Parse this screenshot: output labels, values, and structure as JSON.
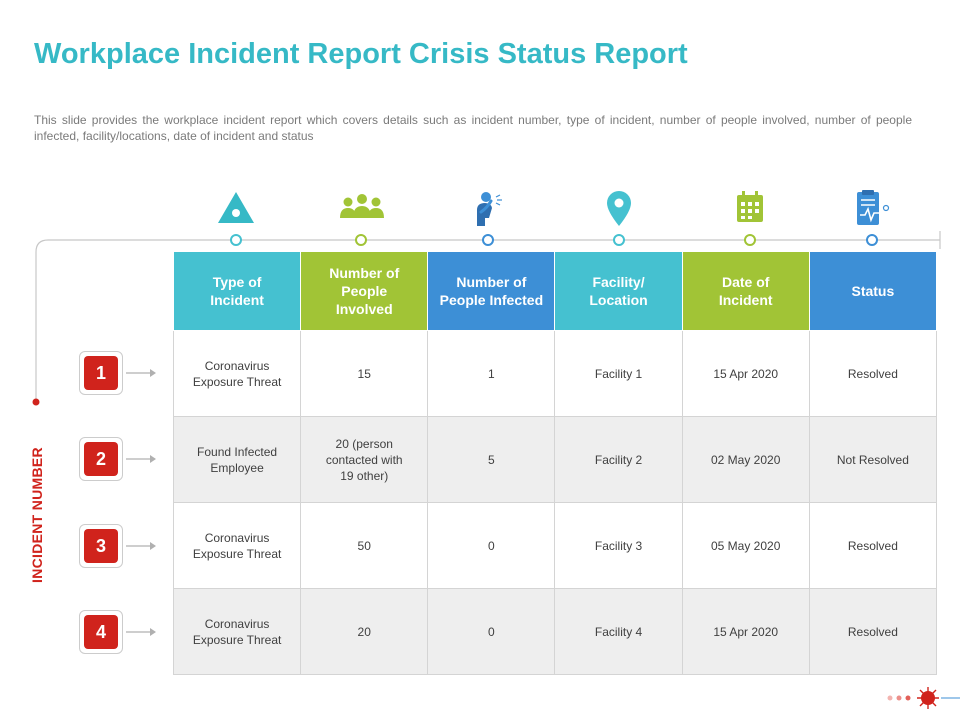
{
  "title": "Workplace Incident Report Crisis Status Report",
  "description": "This slide provides the workplace incident report which covers details such as incident number, type of incident, number of people involved, number of people infected, facility/locations, date of incident and status",
  "side_label": "INCIDENT NUMBER",
  "icons": [
    {
      "name": "warning-triangle-icon",
      "color": "#36b9c6"
    },
    {
      "name": "people-group-icon",
      "color": "#a1c436"
    },
    {
      "name": "sneezing-person-icon",
      "color": "#3d8fd6"
    },
    {
      "name": "location-pin-icon",
      "color": "#45c1d0"
    },
    {
      "name": "calendar-icon",
      "color": "#a1c436"
    },
    {
      "name": "clipboard-report-icon",
      "color": "#3d8fd6"
    }
  ],
  "table": {
    "headers": [
      {
        "line1": "Type of",
        "line2": "Incident",
        "line3": "",
        "color": "#45c1d0"
      },
      {
        "line1": "Number of",
        "line2": "People",
        "line3": "Involved",
        "color": "#a1c436"
      },
      {
        "line1": "Number of",
        "line2": "People Infected",
        "line3": "",
        "color": "#3d8fd6"
      },
      {
        "line1": "Facility/",
        "line2": "Location",
        "line3": "",
        "color": "#45c1d0"
      },
      {
        "line1": "Date of",
        "line2": "Incident",
        "line3": "",
        "color": "#a1c436"
      },
      {
        "line1": "Status",
        "line2": "",
        "line3": "",
        "color": "#3d8fd6"
      }
    ],
    "rows": [
      {
        "number": "1",
        "type_line1": "Coronavirus",
        "type_line2": "Exposure Threat",
        "involved_line1": "15",
        "involved_line2": "",
        "involved_line3": "",
        "infected": "1",
        "facility": "Facility 1",
        "date": "15 Apr 2020",
        "status": "Resolved"
      },
      {
        "number": "2",
        "type_line1": "Found Infected",
        "type_line2": "Employee",
        "involved_line1": "20 (person",
        "involved_line2": "contacted with",
        "involved_line3": "19 other)",
        "infected": "5",
        "facility": "Facility 2",
        "date": "02 May 2020",
        "status": "Not Resolved"
      },
      {
        "number": "3",
        "type_line1": "Coronavirus",
        "type_line2": "Exposure Threat",
        "involved_line1": "50",
        "involved_line2": "",
        "involved_line3": "",
        "infected": "0",
        "facility": "Facility 3",
        "date": "05 May 2020",
        "status": "Resolved"
      },
      {
        "number": "4",
        "type_line1": "Coronavirus",
        "type_line2": "Exposure Threat",
        "involved_line1": "20",
        "involved_line2": "",
        "involved_line3": "",
        "infected": "0",
        "facility": "Facility 4",
        "date": "15 Apr 2020",
        "status": "Resolved"
      }
    ]
  }
}
